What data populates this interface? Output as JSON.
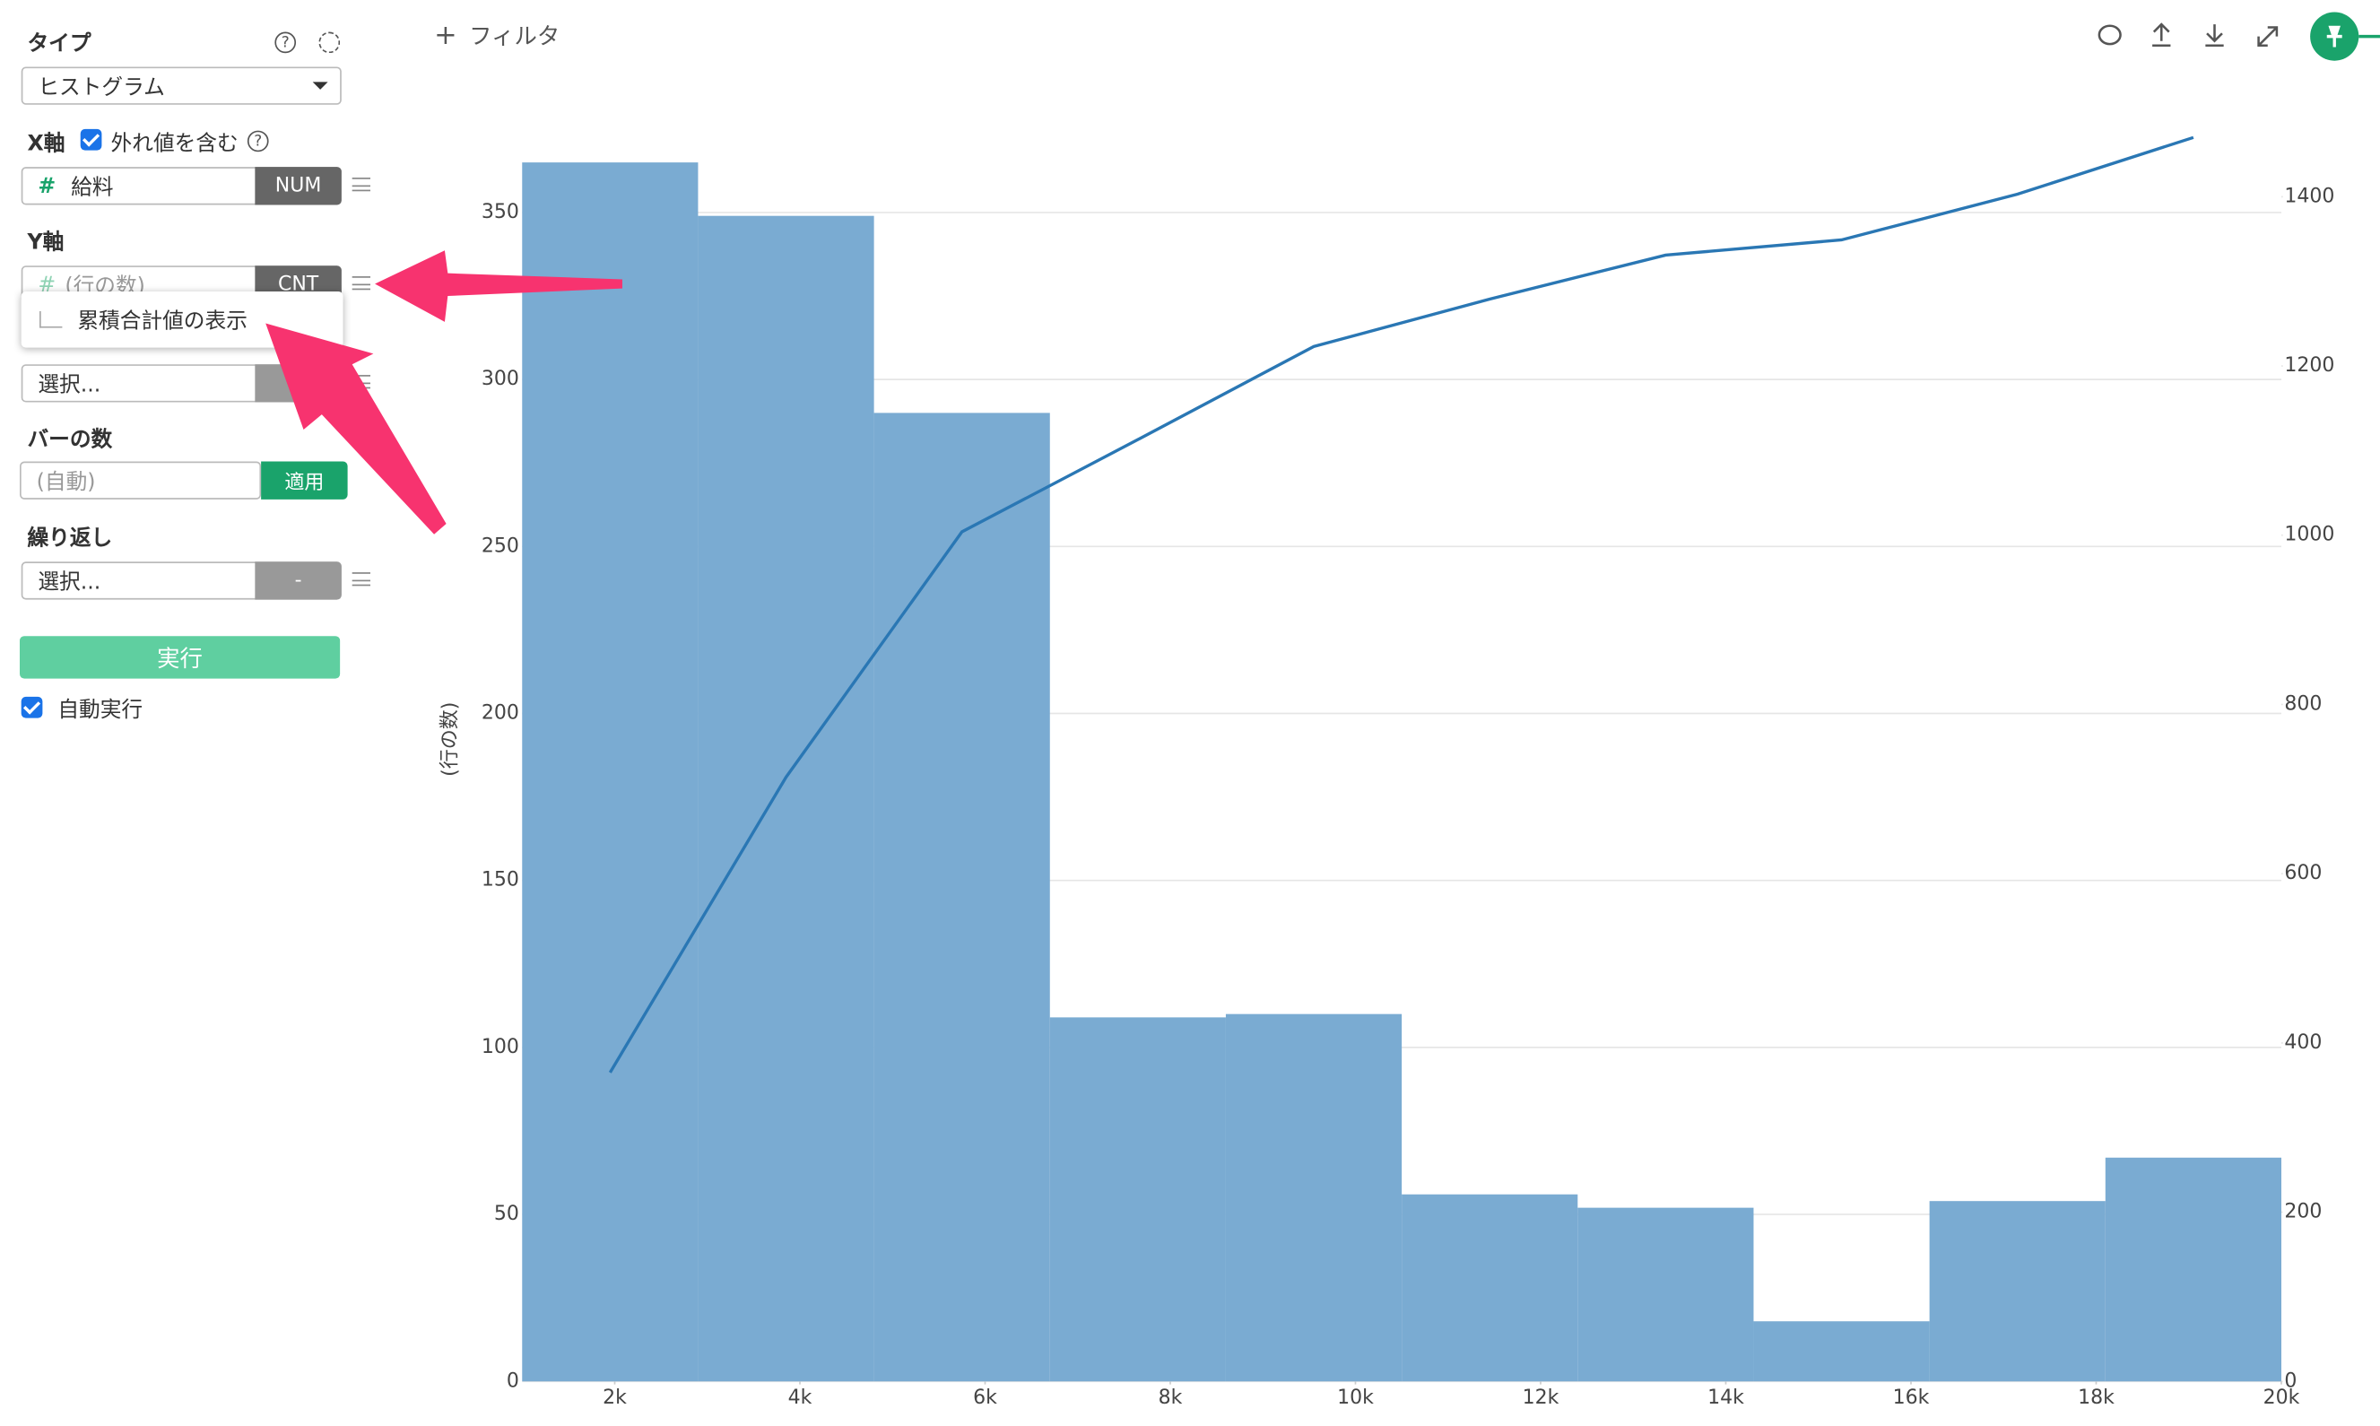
{
  "sidebar": {
    "type_label": "タイプ",
    "type_value": "ヒストグラム",
    "x_axis_label": "X軸",
    "outliers_label": "外れ値を含む",
    "x_field": "給料",
    "x_field_type": "NUM",
    "y_axis_label": "Y軸",
    "y_field": "(行の数)",
    "y_field_type": "CNT",
    "menu_item": "累積合計値の表示",
    "color_placeholder": "選択...",
    "bars_label": "バーの数",
    "bars_placeholder": "(自動)",
    "apply": "適用",
    "repeat_label": "繰り返し",
    "repeat_placeholder": "選択...",
    "repeat_type": "-",
    "run": "実行",
    "auto_run": "自動実行"
  },
  "toolbar": {
    "filter": "フィルタ"
  },
  "chart_data": {
    "type": "histogram",
    "y_label": "(行の数)",
    "bins": [
      1000,
      2900,
      4800,
      6700,
      8600,
      10500,
      12400,
      14300,
      16200,
      18100,
      20000
    ],
    "series": [
      {
        "color": "#7aabd2",
        "values": [
          365,
          349,
          290,
          109,
          110,
          56,
          52,
          18,
          54,
          67
        ]
      },
      {
        "color": "#2a77b4",
        "axis": "y2",
        "values": [
          365,
          714,
          1004,
          1113,
          1223,
          1279,
          1331,
          1349,
          1403,
          1470
        ]
      }
    ],
    "xlim": [
      1000,
      20000
    ],
    "xticks": [
      {
        "value": 2000,
        "label": "2k"
      },
      {
        "value": 4000,
        "label": "4k"
      },
      {
        "value": 6000,
        "label": "6k"
      },
      {
        "value": 8000,
        "label": "8k"
      },
      {
        "value": 10000,
        "label": "10k"
      },
      {
        "value": 12000,
        "label": "12k"
      },
      {
        "value": 14000,
        "label": "14k"
      },
      {
        "value": 16000,
        "label": "16k"
      },
      {
        "value": 18000,
        "label": "18k"
      },
      {
        "value": 20000,
        "label": "20k"
      }
    ],
    "ylim": [
      0,
      375
    ],
    "yticks": [
      0,
      50,
      100,
      150,
      200,
      250,
      300,
      350
    ],
    "y2lim": [
      0,
      1480
    ],
    "y2ticks": [
      0,
      200,
      400,
      600,
      800,
      1000,
      1200,
      1400
    ],
    "grid": true
  }
}
